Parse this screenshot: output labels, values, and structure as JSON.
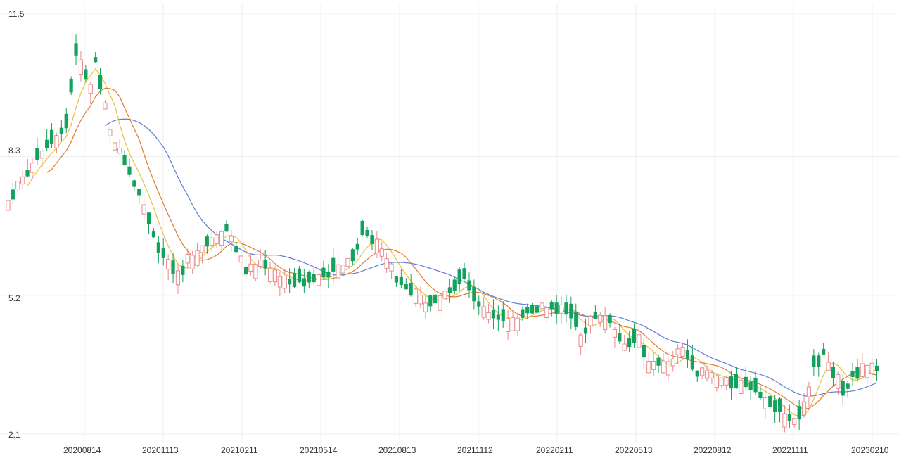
{
  "chart_data": {
    "type": "candlestick",
    "y_ticks": [
      "11.5",
      "8.3",
      "5.2",
      "2.1"
    ],
    "y_tick_values": [
      11.5,
      8.3,
      5.2,
      2.1
    ],
    "ylim": [
      2.1,
      11.5
    ],
    "x_ticks": [
      "20200814",
      "20201113",
      "20210211",
      "20210514",
      "20210813",
      "20211112",
      "20220211",
      "20220513",
      "20220812",
      "20221111",
      "20230210"
    ],
    "grid": true,
    "legend": "none",
    "colors": {
      "up": "#e88a8a",
      "down": "#13a15e",
      "ma_short": "#e8c23a",
      "ma_mid": "#e07b2e",
      "ma_long": "#5b7fd6",
      "grid": "#eeeeee"
    },
    "key_points": [
      [
        0,
        7.3
      ],
      [
        4,
        8.0
      ],
      [
        12,
        9.0
      ],
      [
        14,
        10.6
      ],
      [
        17,
        9.8
      ],
      [
        18,
        10.5
      ],
      [
        21,
        8.8
      ],
      [
        27,
        7.5
      ],
      [
        31,
        6.2
      ],
      [
        35,
        5.6
      ],
      [
        37,
        6.0
      ],
      [
        45,
        6.7
      ],
      [
        49,
        5.7
      ],
      [
        52,
        5.9
      ],
      [
        56,
        5.6
      ],
      [
        58,
        5.5
      ],
      [
        65,
        5.6
      ],
      [
        71,
        6.0
      ],
      [
        73,
        6.6
      ],
      [
        76,
        6.4
      ],
      [
        80,
        5.6
      ],
      [
        86,
        5.0
      ],
      [
        92,
        5.3
      ],
      [
        94,
        5.6
      ],
      [
        98,
        4.8
      ],
      [
        104,
        4.6
      ],
      [
        108,
        4.9
      ],
      [
        115,
        4.9
      ],
      [
        118,
        4.3
      ],
      [
        121,
        4.8
      ],
      [
        124,
        4.6
      ],
      [
        127,
        4.1
      ],
      [
        130,
        4.2
      ],
      [
        132,
        3.7
      ],
      [
        136,
        3.6
      ],
      [
        139,
        4.0
      ],
      [
        142,
        3.5
      ],
      [
        145,
        3.4
      ],
      [
        148,
        3.3
      ],
      [
        151,
        3.2
      ],
      [
        154,
        3.1
      ],
      [
        157,
        2.8
      ],
      [
        160,
        2.5
      ],
      [
        162,
        2.4
      ],
      [
        164,
        2.7
      ],
      [
        166,
        3.6
      ],
      [
        168,
        3.9
      ],
      [
        170,
        3.5
      ],
      [
        172,
        3.1
      ],
      [
        174,
        3.4
      ],
      [
        177,
        3.6
      ],
      [
        179,
        3.5
      ]
    ],
    "n": 180
  }
}
